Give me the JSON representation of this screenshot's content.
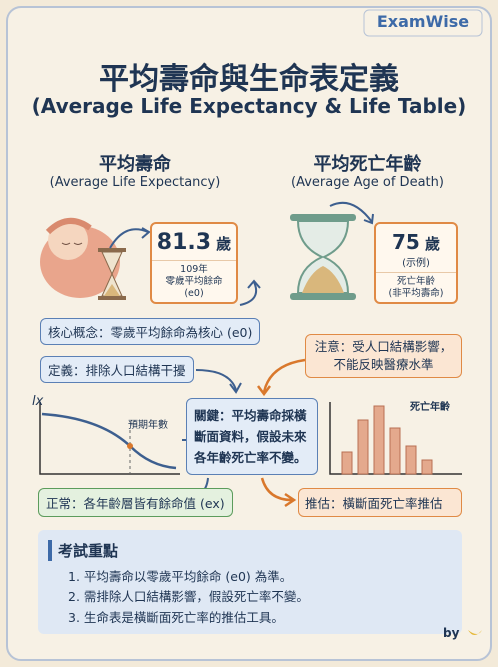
{
  "brand": "ExamWise",
  "title": "平均壽命與生命表定義",
  "subtitle": "(Average Life Expectancy & Life Table)",
  "left": {
    "heading": "平均壽命",
    "heading_en": "(Average Life Expectancy)",
    "value": "81.3",
    "unit": "歲",
    "caption": [
      "109年",
      "零歲平均餘命",
      "(e0)"
    ]
  },
  "right": {
    "heading": "平均死亡年齡",
    "heading_en": "(Average Age of Death)",
    "value": "75",
    "unit": "歲",
    "note": "(示例)",
    "caption": [
      "死亡年齡",
      "(非平均壽命)"
    ]
  },
  "concept": "核心概念：零歲平均餘命為核心 (e0)",
  "definition": "定義：排除人口結構干擾",
  "caution": [
    "注意：受人口結構影響，",
    "不能反映醫療水準"
  ],
  "key": [
    "關鍵：平均壽命採橫",
    "斷面資料，假設未來",
    "各年齡死亡率不變。"
  ],
  "curve": {
    "y_label": "lx",
    "annotation": "預期年數"
  },
  "bars": {
    "label": "死亡年齡"
  },
  "normal": "正常：各年齡層皆有餘命值 (ex)",
  "estimate": "推估：橫斷面死亡率推估",
  "exam": {
    "title": "考試重點",
    "items": [
      "1. 平均壽命以零歲平均餘命 (e0) 為準。",
      "2. 需排除人口結構影響，假設死亡率不變。",
      "3. 生命表是橫斷面死亡率的推估工具。"
    ]
  },
  "footer": "by"
}
